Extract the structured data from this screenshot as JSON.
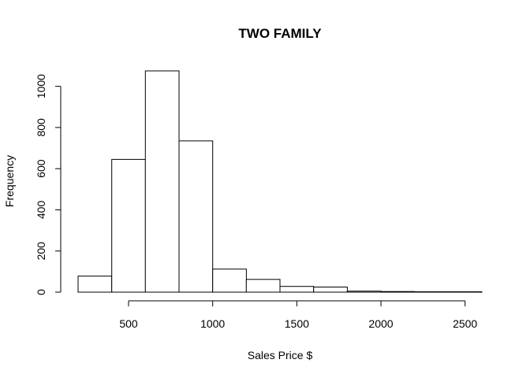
{
  "chart_data": {
    "type": "bar",
    "subtype": "histogram",
    "title": "TWO FAMILY",
    "xlabel": "Sales Price $",
    "ylabel": "Frequency",
    "bin_edges": [
      200,
      400,
      600,
      800,
      1000,
      1200,
      1400,
      1600,
      1800,
      2000,
      2200,
      2400,
      2600
    ],
    "values": [
      78,
      645,
      1075,
      735,
      112,
      62,
      28,
      25,
      5,
      3,
      2,
      2
    ],
    "x_ticks": [
      500,
      1000,
      1500,
      2000,
      2500
    ],
    "y_ticks": [
      0,
      200,
      400,
      600,
      800,
      1000
    ],
    "xlim": [
      200,
      2600
    ],
    "ylim": [
      0,
      1075
    ],
    "grid": false,
    "bar_fill": "#ffffff",
    "bar_stroke": "#000000"
  }
}
